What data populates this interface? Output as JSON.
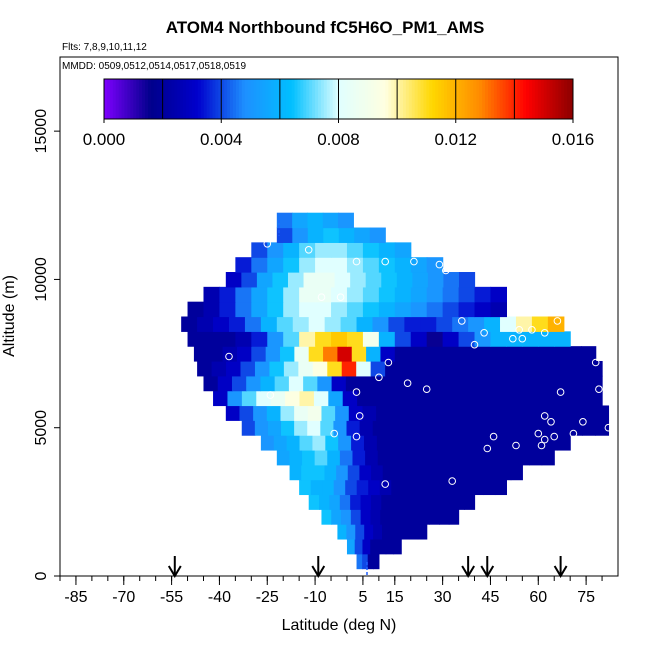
{
  "header": {
    "title": "ATOM4 Northbound fC5H6O_PM1_AMS",
    "flights": "Flts: 7,8,9,10,11,12",
    "mmdd": "MMDD: 0509,0512,0514,0517,0518,0519"
  },
  "chart_data": {
    "type": "heatmap",
    "title": "ATOM4 Northbound fC5H6O_PM1_AMS",
    "xlabel": "Latitude (deg N)",
    "ylabel": "Altitude (m)",
    "xlim": [
      -90,
      85
    ],
    "ylim": [
      0,
      17500
    ],
    "x_ticks": [
      -85,
      -70,
      -55,
      -40,
      -25,
      -10,
      5,
      15,
      30,
      45,
      60,
      75
    ],
    "y_ticks": [
      0,
      5000,
      10000,
      15000
    ],
    "colorbar": {
      "ticks": [
        "0.000",
        "0.004",
        "0.008",
        "0.012",
        "0.016"
      ],
      "min": 0.0,
      "max": 0.016,
      "colors": [
        "#7f00ff",
        "#00008b",
        "#0000cd",
        "#1e90ff",
        "#00bfff",
        "#e0ffff",
        "#ffffe0",
        "#ffd700",
        "#ff8c00",
        "#ff0000",
        "#8b0000"
      ]
    },
    "arrows_latitude": [
      -54,
      -9,
      38,
      44,
      67
    ],
    "grid": {
      "alt_step": 500,
      "rows": [
        {
          "alt": 500,
          "lat_min": 3,
          "lat_max": 10,
          "values": [
            0.0045,
            0.004,
            0.002,
            0.002
          ]
        },
        {
          "alt": 1000,
          "lat_min": 0,
          "lat_max": 17,
          "values": [
            0.0055,
            0.004,
            0.003,
            0.002,
            0.002,
            0.002,
            0.002
          ]
        },
        {
          "alt": 1500,
          "lat_min": -3,
          "lat_max": 25,
          "values": [
            0.006,
            0.005,
            0.004,
            0.003,
            0.0025,
            0.002,
            0.002,
            0.002,
            0.002,
            0.002
          ]
        },
        {
          "alt": 2000,
          "lat_min": -8,
          "lat_max": 35,
          "values": [
            0.0065,
            0.0055,
            0.005,
            0.004,
            0.003,
            0.0025,
            0.002,
            0.002,
            0.002,
            0.002,
            0.002,
            0.002,
            0.002,
            0.002
          ]
        },
        {
          "alt": 2500,
          "lat_min": -12,
          "lat_max": 40,
          "values": [
            0.0065,
            0.006,
            0.0055,
            0.0045,
            0.0035,
            0.003,
            0.0025,
            0.002,
            0.002,
            0.002,
            0.002,
            0.002,
            0.002,
            0.002,
            0.002,
            0.002
          ]
        },
        {
          "alt": 3000,
          "lat_min": -15,
          "lat_max": 50,
          "values": [
            0.0065,
            0.006,
            0.006,
            0.005,
            0.004,
            0.0035,
            0.003,
            0.0025,
            0.002,
            0.002,
            0.002,
            0.002,
            0.002,
            0.002,
            0.002,
            0.002,
            0.002,
            0.002
          ]
        },
        {
          "alt": 3500,
          "lat_min": -18,
          "lat_max": 55,
          "values": [
            0.006,
            0.0065,
            0.0065,
            0.006,
            0.005,
            0.004,
            0.003,
            0.0025,
            0.002,
            0.002,
            0.002,
            0.002,
            0.002,
            0.002,
            0.002,
            0.002,
            0.002,
            0.002,
            0.002,
            0.002
          ]
        },
        {
          "alt": 4000,
          "lat_min": -22,
          "lat_max": 65,
          "values": [
            0.0055,
            0.006,
            0.0065,
            0.007,
            0.006,
            0.0045,
            0.0035,
            0.0025,
            0.002,
            0.002,
            0.002,
            0.002,
            0.002,
            0.002,
            0.002,
            0.002,
            0.002,
            0.002,
            0.002,
            0.002,
            0.002,
            0.002
          ]
        },
        {
          "alt": 4500,
          "lat_min": -27,
          "lat_max": 70,
          "values": [
            0.005,
            0.0055,
            0.006,
            0.007,
            0.0075,
            0.0065,
            0.005,
            0.0035,
            0.0025,
            0.002,
            0.002,
            0.002,
            0.002,
            0.002,
            0.002,
            0.002,
            0.002,
            0.002,
            0.002,
            0.002,
            0.002,
            0.002,
            0.002,
            0.002
          ]
        },
        {
          "alt": 5000,
          "lat_min": -33,
          "lat_max": 82,
          "values": [
            0.004,
            0.005,
            0.0055,
            0.0065,
            0.0075,
            0.008,
            0.007,
            0.005,
            0.0035,
            0.0025,
            0.002,
            0.002,
            0.002,
            0.002,
            0.002,
            0.002,
            0.002,
            0.002,
            0.002,
            0.002,
            0.002,
            0.002,
            0.002,
            0.002,
            0.002,
            0.002,
            0.002,
            0.002
          ]
        },
        {
          "alt": 5500,
          "lat_min": -38,
          "lat_max": 82,
          "values": [
            0.003,
            0.004,
            0.005,
            0.006,
            0.0075,
            0.0085,
            0.009,
            0.007,
            0.005,
            0.003,
            0.0025,
            0.002,
            0.002,
            0.002,
            0.002,
            0.002,
            0.002,
            0.002,
            0.002,
            0.002,
            0.002,
            0.002,
            0.002,
            0.002,
            0.002,
            0.002,
            0.002,
            0.002
          ]
        },
        {
          "alt": 6000,
          "lat_min": -42,
          "lat_max": 80,
          "values": [
            0.003,
            0.005,
            0.007,
            0.008,
            0.0085,
            0.0095,
            0.01,
            0.008,
            0.0055,
            0.003,
            0.002,
            0.002,
            0.002,
            0.002,
            0.002,
            0.002,
            0.002,
            0.002,
            0.002,
            0.002,
            0.002,
            0.002,
            0.002,
            0.002,
            0.002,
            0.002,
            0.002
          ]
        },
        {
          "alt": 6500,
          "lat_min": -45,
          "lat_max": 80,
          "values": [
            0.002,
            0.003,
            0.004,
            0.005,
            0.006,
            0.007,
            0.008,
            0.007,
            0.005,
            0.003,
            0.002,
            0.002,
            0.002,
            0.002,
            0.002,
            0.002,
            0.002,
            0.002,
            0.002,
            0.002,
            0.002,
            0.002,
            0.002,
            0.002,
            0.002,
            0.002,
            0.002,
            0.002
          ]
        },
        {
          "alt": 7000,
          "lat_min": -47,
          "lat_max": 80,
          "values": [
            0.002,
            0.0025,
            0.003,
            0.004,
            0.005,
            0.0065,
            0.0075,
            0.0085,
            0.0095,
            0.011,
            0.014,
            0.008,
            0.004,
            0.002,
            0.002,
            0.002,
            0.002,
            0.002,
            0.002,
            0.002,
            0.002,
            0.002,
            0.002,
            0.002,
            0.002,
            0.002,
            0.002,
            0.002
          ]
        },
        {
          "alt": 7500,
          "lat_min": -48,
          "lat_max": 78,
          "values": [
            0.002,
            0.002,
            0.0025,
            0.003,
            0.004,
            0.005,
            0.0065,
            0.0085,
            0.011,
            0.013,
            0.015,
            0.011,
            0.006,
            0.003,
            0.002,
            0.002,
            0.002,
            0.002,
            0.002,
            0.002,
            0.002,
            0.002,
            0.002,
            0.002,
            0.002,
            0.002,
            0.002,
            0.002
          ]
        },
        {
          "alt": 8000,
          "lat_min": -50,
          "lat_max": 70,
          "values": [
            0.002,
            0.002,
            0.002,
            0.0025,
            0.0035,
            0.005,
            0.007,
            0.01,
            0.011,
            0.0115,
            0.011,
            0.009,
            0.006,
            0.004,
            0.003,
            0.0015,
            0.003,
            0.004,
            0.005,
            0.006,
            0.006,
            0.006,
            0.006,
            0.006
          ]
        },
        {
          "alt": 8500,
          "lat_min": -52,
          "lat_max": 68,
          "values": [
            0.002,
            0.0025,
            0.003,
            0.0035,
            0.0045,
            0.006,
            0.007,
            0.0075,
            0.008,
            0.0075,
            0.007,
            0.006,
            0.005,
            0.004,
            0.0035,
            0.0035,
            0.004,
            0.0045,
            0.005,
            0.006,
            0.008,
            0.01,
            0.011,
            0.012
          ]
        },
        {
          "alt": 9000,
          "lat_min": -50,
          "lat_max": 50,
          "values": [
            0.002,
            0.0025,
            0.0035,
            0.0045,
            0.0055,
            0.0065,
            0.0075,
            0.008,
            0.008,
            0.0075,
            0.007,
            0.0065,
            0.006,
            0.0055,
            0.005,
            0.0045,
            0.004,
            0.0035,
            0.003,
            0.0025
          ]
        },
        {
          "alt": 9500,
          "lat_min": -45,
          "lat_max": 50,
          "values": [
            0.0025,
            0.0035,
            0.0045,
            0.0055,
            0.0065,
            0.0075,
            0.0085,
            0.0085,
            0.008,
            0.0075,
            0.007,
            0.0065,
            0.006,
            0.0055,
            0.005,
            0.0045,
            0.004,
            0.0035,
            0.003
          ]
        },
        {
          "alt": 10000,
          "lat_min": -38,
          "lat_max": 40,
          "values": [
            0.003,
            0.004,
            0.0055,
            0.0065,
            0.0075,
            0.0085,
            0.0085,
            0.008,
            0.0075,
            0.007,
            0.0065,
            0.006,
            0.0055,
            0.005,
            0.0045,
            0.004
          ]
        },
        {
          "alt": 10500,
          "lat_min": -35,
          "lat_max": 30,
          "values": [
            0.0035,
            0.0045,
            0.0055,
            0.0065,
            0.0075,
            0.008,
            0.008,
            0.0075,
            0.007,
            0.0065,
            0.006,
            0.0055,
            0.005
          ]
        },
        {
          "alt": 11000,
          "lat_min": -30,
          "lat_max": 20,
          "values": [
            0.004,
            0.005,
            0.006,
            0.007,
            0.0075,
            0.0075,
            0.007,
            0.0065,
            0.006,
            0.0055
          ]
        },
        {
          "alt": 11500,
          "lat_min": -22,
          "lat_max": 12,
          "values": [
            0.004,
            0.005,
            0.006,
            0.0065,
            0.006,
            0.0055,
            0.005
          ]
        },
        {
          "alt": 12000,
          "lat_min": -22,
          "lat_max": 2,
          "values": [
            0.0045,
            0.0055,
            0.006,
            0.0055,
            0.005
          ]
        }
      ]
    },
    "sample_points": [
      {
        "lat": -57,
        "alt": 8500
      },
      {
        "lat": -25,
        "alt": 11200
      },
      {
        "lat": -12,
        "alt": 11000
      },
      {
        "lat": 3,
        "alt": 10600
      },
      {
        "lat": 12,
        "alt": 10600
      },
      {
        "lat": 21,
        "alt": 10600
      },
      {
        "lat": 29,
        "alt": 10500
      },
      {
        "lat": 31,
        "alt": 10300
      },
      {
        "lat": -8,
        "alt": 9400
      },
      {
        "lat": -2,
        "alt": 9400
      },
      {
        "lat": 36,
        "alt": 8600
      },
      {
        "lat": 43,
        "alt": 8200
      },
      {
        "lat": 40,
        "alt": 7800
      },
      {
        "lat": 52,
        "alt": 8000
      },
      {
        "lat": 54,
        "alt": 8300
      },
      {
        "lat": 58,
        "alt": 8300
      },
      {
        "lat": 55,
        "alt": 8000
      },
      {
        "lat": 62,
        "alt": 8200
      },
      {
        "lat": 66,
        "alt": 8600
      },
      {
        "lat": -37,
        "alt": 7400
      },
      {
        "lat": 13,
        "alt": 7200
      },
      {
        "lat": 10,
        "alt": 6700
      },
      {
        "lat": 19,
        "alt": 6500
      },
      {
        "lat": 3,
        "alt": 6200
      },
      {
        "lat": 25,
        "alt": 6300
      },
      {
        "lat": -24,
        "alt": 6100
      },
      {
        "lat": -52,
        "alt": 6100
      },
      {
        "lat": 78,
        "alt": 7200
      },
      {
        "lat": 67,
        "alt": 6200
      },
      {
        "lat": 79,
        "alt": 6300
      },
      {
        "lat": 4,
        "alt": 5400
      },
      {
        "lat": 62,
        "alt": 5400
      },
      {
        "lat": 64,
        "alt": 5200
      },
      {
        "lat": 74,
        "alt": 5200
      },
      {
        "lat": 82,
        "alt": 5000
      },
      {
        "lat": -4,
        "alt": 4800
      },
      {
        "lat": 3,
        "alt": 4700
      },
      {
        "lat": 46,
        "alt": 4700
      },
      {
        "lat": 60,
        "alt": 4800
      },
      {
        "lat": 62,
        "alt": 4600
      },
      {
        "lat": 65,
        "alt": 4700
      },
      {
        "lat": 71,
        "alt": 4800
      },
      {
        "lat": 53,
        "alt": 4400
      },
      {
        "lat": 61,
        "alt": 4400
      },
      {
        "lat": 44,
        "alt": 4300
      },
      {
        "lat": 12,
        "alt": 3100
      },
      {
        "lat": 33,
        "alt": 3200
      }
    ]
  }
}
